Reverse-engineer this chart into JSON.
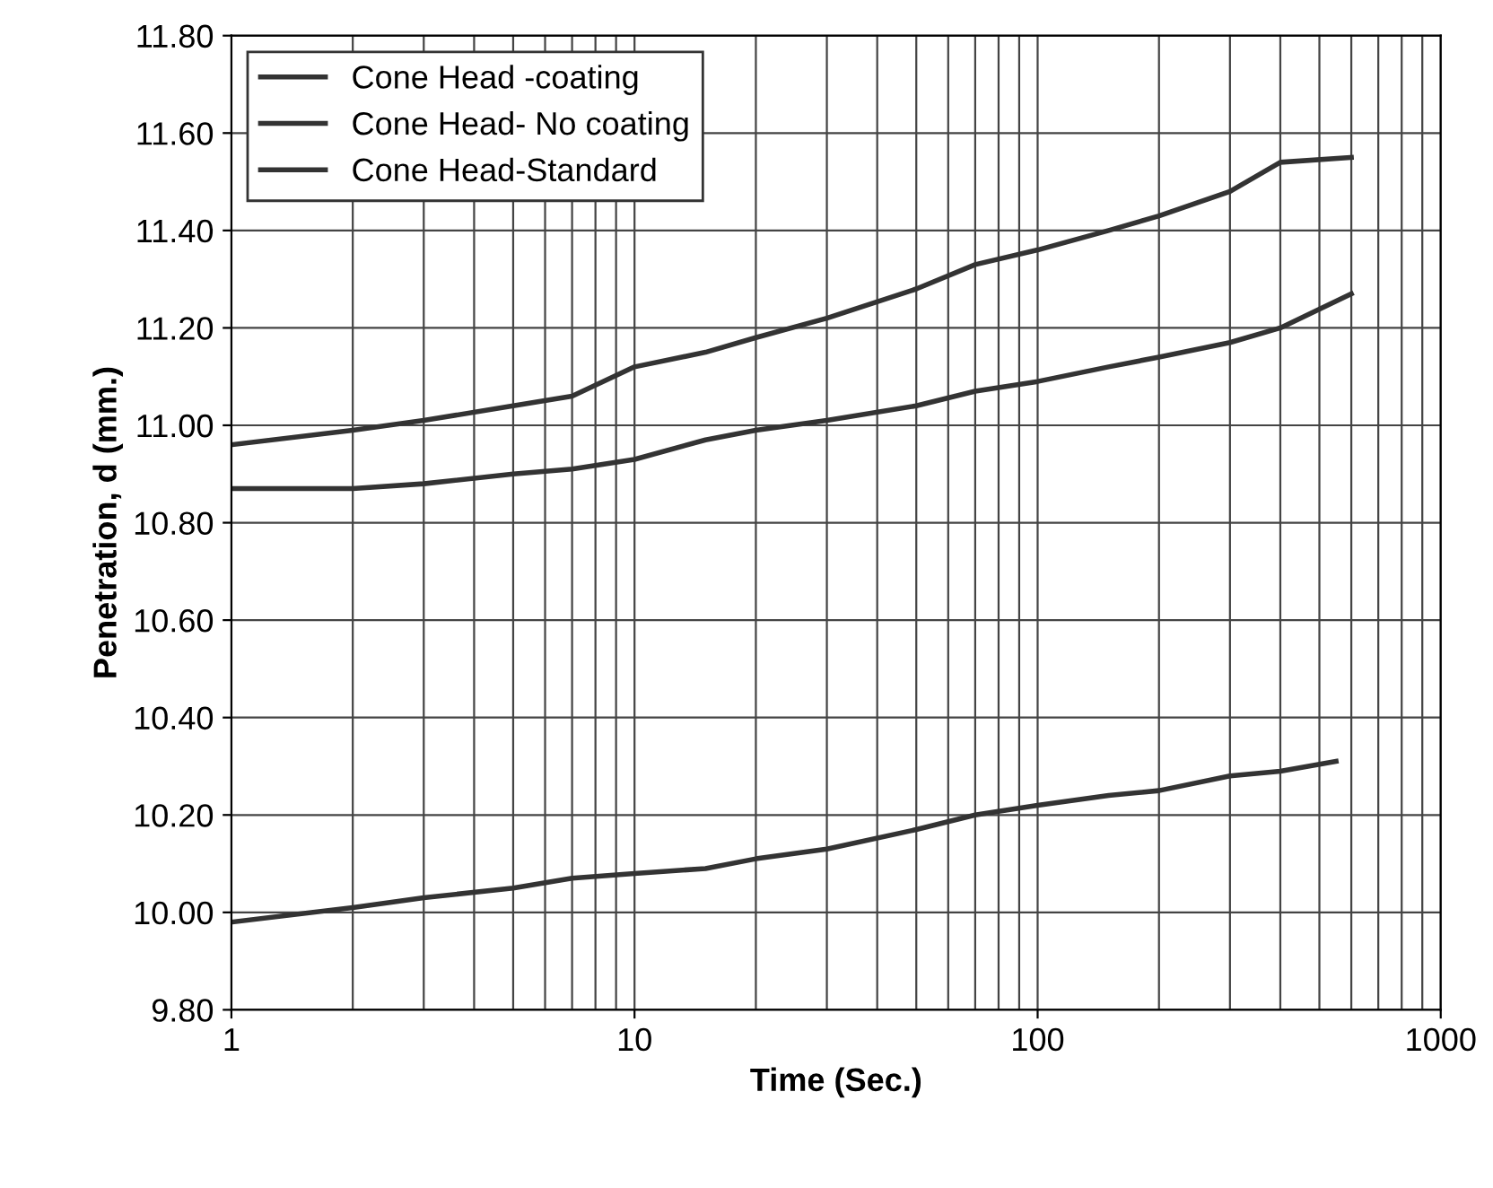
{
  "chart_data": {
    "type": "line",
    "xlabel": "Time (Sec.)",
    "ylabel": "Penetration, d (mm.)",
    "log": "x",
    "xlim": [
      1,
      1000
    ],
    "xticks": [
      1,
      10,
      100,
      1000
    ],
    "ylim": [
      9.8,
      11.8
    ],
    "yticks": [
      {
        "value": 9.8,
        "label": "9.80"
      },
      {
        "value": 10.0,
        "label": "10.00"
      },
      {
        "value": 10.2,
        "label": "10.20"
      },
      {
        "value": 10.4,
        "label": "10.40"
      },
      {
        "value": 10.6,
        "label": "10.60"
      },
      {
        "value": 10.8,
        "label": "10.80"
      },
      {
        "value": 11.0,
        "label": "11.00"
      },
      {
        "value": 11.2,
        "label": "11.20"
      },
      {
        "value": 11.4,
        "label": "11.40"
      },
      {
        "value": 11.6,
        "label": "11.60"
      },
      {
        "value": 11.8,
        "label": "11.80"
      }
    ],
    "grid": true,
    "legend": "top left",
    "marker": "none",
    "line_style": "solid",
    "series": [
      {
        "name": "Cone Head -coating",
        "color": "#333333",
        "x": [
          1,
          2,
          3,
          5,
          7,
          10,
          15,
          20,
          30,
          50,
          70,
          100,
          150,
          200,
          300,
          400,
          600
        ],
        "values": [
          10.96,
          10.99,
          11.01,
          11.04,
          11.06,
          11.12,
          11.15,
          11.18,
          11.22,
          11.28,
          11.33,
          11.36,
          11.4,
          11.43,
          11.48,
          11.54,
          11.55
        ]
      },
      {
        "name": "Cone Head- No coating",
        "color": "#333333",
        "x": [
          1,
          2,
          3,
          5,
          7,
          10,
          15,
          20,
          30,
          50,
          70,
          100,
          150,
          200,
          300,
          400,
          600
        ],
        "values": [
          10.87,
          10.87,
          10.88,
          10.9,
          10.91,
          10.93,
          10.97,
          10.99,
          11.01,
          11.04,
          11.07,
          11.09,
          11.12,
          11.14,
          11.17,
          11.2,
          11.27
        ]
      },
      {
        "name": "Cone Head-Standard",
        "color": "#333333",
        "x": [
          1,
          2,
          3,
          5,
          7,
          10,
          15,
          20,
          30,
          50,
          70,
          100,
          150,
          200,
          300,
          400,
          550
        ],
        "values": [
          9.98,
          10.01,
          10.03,
          10.05,
          10.07,
          10.08,
          10.09,
          10.11,
          10.13,
          10.17,
          10.2,
          10.22,
          10.24,
          10.25,
          10.28,
          10.29,
          10.31
        ]
      }
    ]
  }
}
